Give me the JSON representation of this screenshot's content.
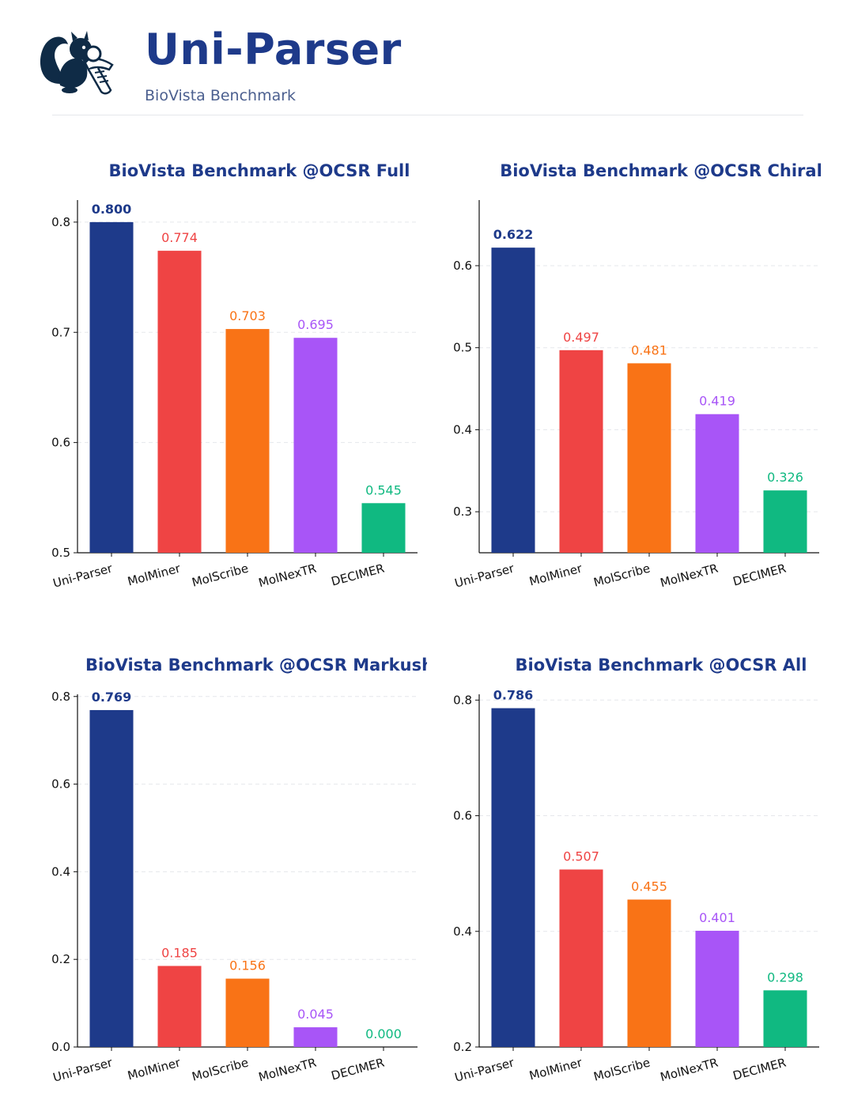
{
  "header": {
    "title": "Uni-Parser",
    "subtitle": "BioVista Benchmark",
    "logo_icon": "squirrel-reading-scroll-icon"
  },
  "colors": {
    "uni_parser": "#1e3a8a",
    "molminer": "#ef4444",
    "molscribe": "#f97316",
    "molnextr": "#a855f7",
    "decimer": "#10b981"
  },
  "chart_data": [
    {
      "type": "bar",
      "title": "BioVista Benchmark @OCSR Full",
      "categories": [
        "Uni-Parser",
        "MolMiner",
        "MolScribe",
        "MolNexTR",
        "DECIMER"
      ],
      "values": [
        0.8,
        0.774,
        0.703,
        0.695,
        0.545
      ],
      "value_labels": [
        "0.800",
        "0.774",
        "0.703",
        "0.695",
        "0.545"
      ],
      "ylim": [
        0.5,
        0.82
      ],
      "yticks": [
        0.5,
        0.6,
        0.7,
        0.8
      ],
      "ytick_labels": [
        "0.5",
        "0.6",
        "0.7",
        "0.8"
      ],
      "xlabel": "",
      "ylabel": "",
      "grid": true
    },
    {
      "type": "bar",
      "title": "BioVista Benchmark @OCSR Chiral",
      "categories": [
        "Uni-Parser",
        "MolMiner",
        "MolScribe",
        "MolNexTR",
        "DECIMER"
      ],
      "values": [
        0.622,
        0.497,
        0.481,
        0.419,
        0.326
      ],
      "value_labels": [
        "0.622",
        "0.497",
        "0.481",
        "0.419",
        "0.326"
      ],
      "ylim": [
        0.25,
        0.68
      ],
      "yticks": [
        0.3,
        0.4,
        0.5,
        0.6
      ],
      "ytick_labels": [
        "0.3",
        "0.4",
        "0.5",
        "0.6"
      ],
      "xlabel": "",
      "ylabel": "",
      "grid": true
    },
    {
      "type": "bar",
      "title": "BioVista Benchmark @OCSR Markush",
      "categories": [
        "Uni-Parser",
        "MolMiner",
        "MolScribe",
        "MolNexTR",
        "DECIMER"
      ],
      "values": [
        0.769,
        0.185,
        0.156,
        0.045,
        0.0
      ],
      "value_labels": [
        "0.769",
        "0.185",
        "0.156",
        "0.045",
        "0.000"
      ],
      "ylim": [
        0.0,
        0.805
      ],
      "yticks": [
        0.0,
        0.2,
        0.4,
        0.6,
        0.8
      ],
      "ytick_labels": [
        "0.0",
        "0.2",
        "0.4",
        "0.6",
        "0.8"
      ],
      "xlabel": "",
      "ylabel": "",
      "grid": true
    },
    {
      "type": "bar",
      "title": "BioVista Benchmark @OCSR All",
      "categories": [
        "Uni-Parser",
        "MolMiner",
        "MolScribe",
        "MolNexTR",
        "DECIMER"
      ],
      "values": [
        0.786,
        0.507,
        0.455,
        0.401,
        0.298
      ],
      "value_labels": [
        "0.786",
        "0.507",
        "0.455",
        "0.401",
        "0.298"
      ],
      "ylim": [
        0.2,
        0.81
      ],
      "yticks": [
        0.2,
        0.4,
        0.6,
        0.8
      ],
      "ytick_labels": [
        "0.2",
        "0.4",
        "0.6",
        "0.8"
      ],
      "xlabel": "",
      "ylabel": "",
      "grid": true
    }
  ]
}
